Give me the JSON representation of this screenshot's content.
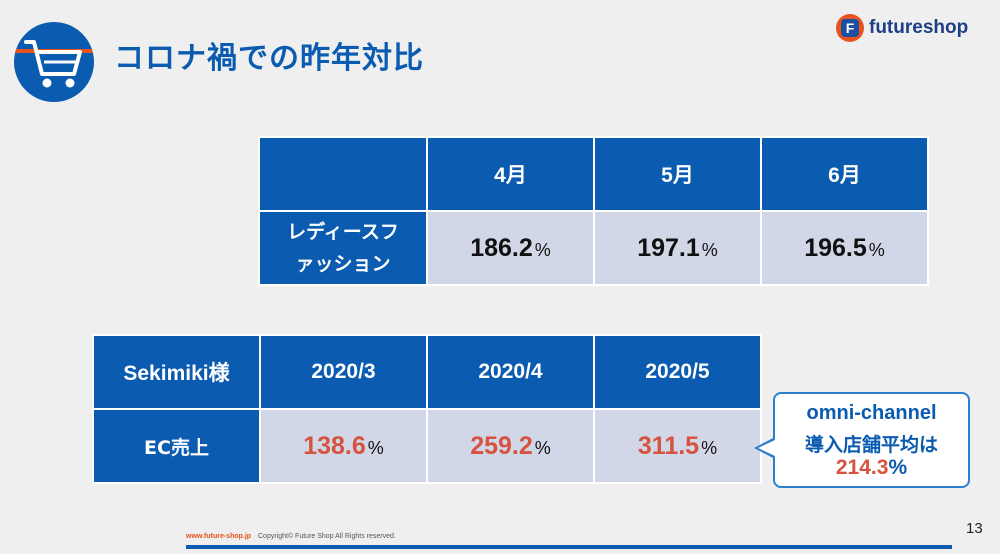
{
  "slide": {
    "title": "コロナ禍での昨年対比",
    "logo_letter": "F",
    "logo_text": "futureshop",
    "page_number": "13"
  },
  "table1": {
    "headers": [
      "",
      "4月",
      "5月",
      "6月"
    ],
    "row_label": "レディースファッション",
    "values": [
      "186.2",
      "197.1",
      "196.5"
    ],
    "unit": "%"
  },
  "table2": {
    "headers": [
      "Sekimiki様",
      "2020/3",
      "2020/4",
      "2020/5"
    ],
    "row_label": "EC売上",
    "values": [
      "138.6",
      "259.2",
      "311.5"
    ],
    "unit": "%"
  },
  "callout": {
    "line1": "omni-channel",
    "line2": "導入店舗平均は",
    "value": "214.3",
    "unit": "%"
  },
  "footer": {
    "url": "www.future-shop.jp",
    "copyright": "Copyright© Future Shop All Rights reserved."
  },
  "colors": {
    "brand_blue": "#0b5bb0",
    "accent_orange": "#e8531c",
    "cell_fill": "#d1d7e7",
    "highlight_red": "#d6533f"
  },
  "icons": {
    "header": "shopping-cart-icon",
    "logo": "futureshop-logo"
  }
}
